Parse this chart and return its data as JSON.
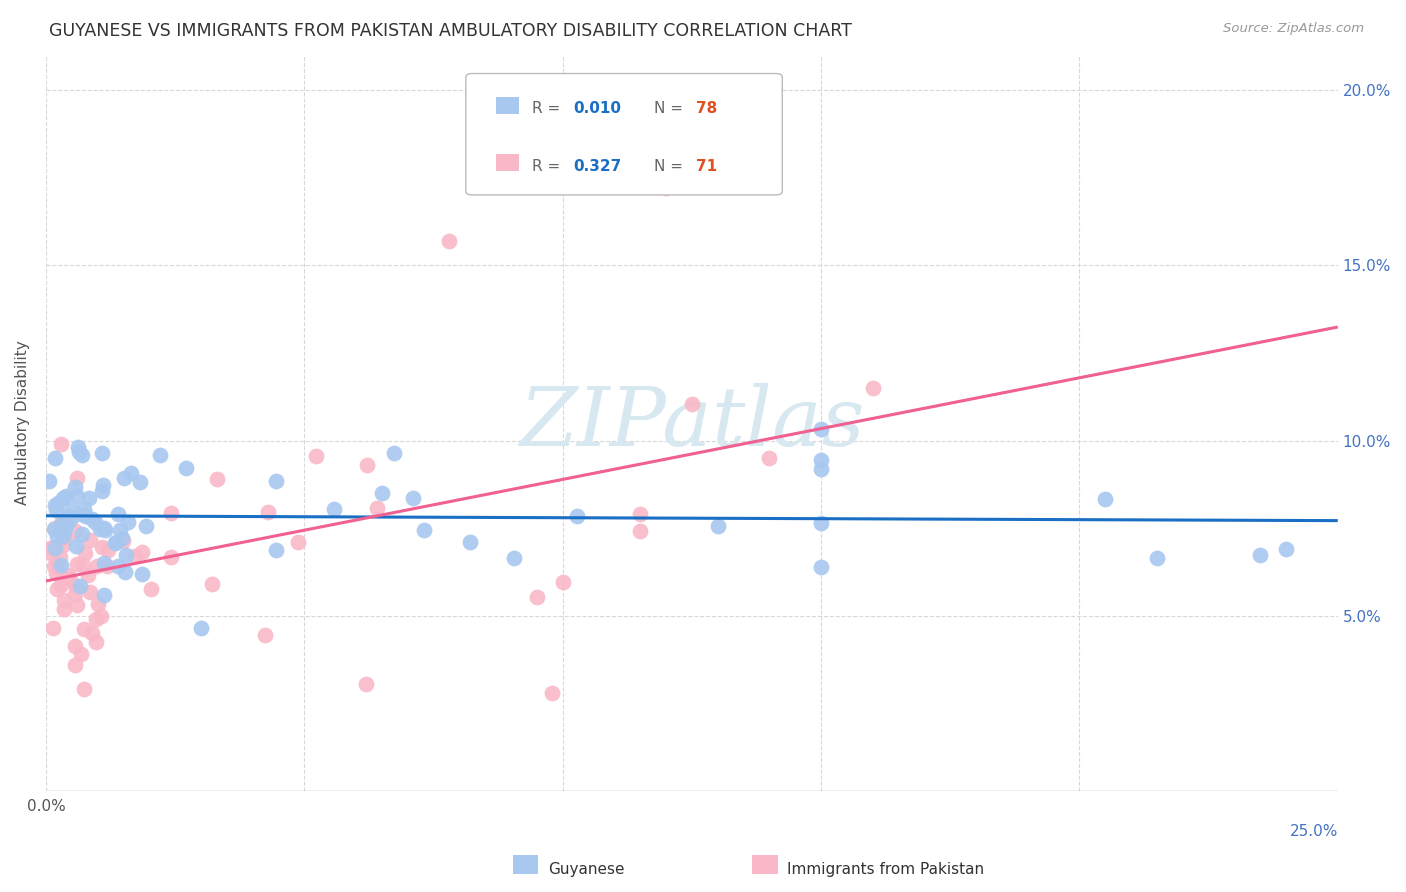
{
  "title": "GUYANESE VS IMMIGRANTS FROM PAKISTAN AMBULATORY DISABILITY CORRELATION CHART",
  "source": "Source: ZipAtlas.com",
  "ylabel": "Ambulatory Disability",
  "xlim": [
    0.0,
    0.25
  ],
  "ylim": [
    0.0,
    0.21
  ],
  "ytick_values": [
    0.05,
    0.1,
    0.15,
    0.2
  ],
  "xtick_values": [
    0.0,
    0.05,
    0.1,
    0.15,
    0.2,
    0.25
  ],
  "background_color": "#ffffff",
  "grid_color": "#d8d8d8",
  "series1_label": "Guyanese",
  "series2_label": "Immigrants from Pakistan",
  "series1_color": "#a8c8f0",
  "series2_color": "#f9b8c8",
  "series1_R": 0.01,
  "series1_N": 78,
  "series2_R": 0.327,
  "series2_N": 71,
  "legend_R_color": "#1a6fc4",
  "legend_N_color": "#e05020",
  "trend1_color": "#1a6fc4",
  "trend2_color": "#f06090",
  "watermark_color": "#d8e8f0"
}
